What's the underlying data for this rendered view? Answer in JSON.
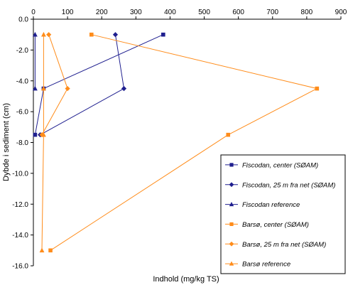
{
  "chart_data": {
    "type": "line",
    "title": "",
    "xlabel": "Indhold (mg/kg TS)",
    "ylabel": "Dybde i sediment (cm)",
    "xlim": [
      0,
      900
    ],
    "ylim": [
      -16,
      0
    ],
    "x_ticks": [
      "0",
      "100",
      "200",
      "300",
      "400",
      "500",
      "600",
      "700",
      "800",
      "900"
    ],
    "y_ticks": [
      "0.0",
      "-2.0",
      "-4.0",
      "-6.0",
      "-8.0",
      "-10.0",
      "-12.0",
      "-14.0",
      "-16.0"
    ],
    "x_axis_position": "top",
    "grid": false,
    "legend_position": "bottom-right",
    "series": [
      {
        "name": "Fiscodan, center (SØAM)",
        "color": "#1f1f8f",
        "marker": "square",
        "points": [
          [
            380,
            -1.0
          ],
          [
            30,
            -4.5
          ],
          [
            5,
            -7.5
          ]
        ]
      },
      {
        "name": "Fiscodan, 25 m fra net (SØAM)",
        "color": "#1f1f8f",
        "marker": "diamond",
        "points": [
          [
            240,
            -1.0
          ],
          [
            265,
            -4.5
          ],
          [
            20,
            -7.5
          ]
        ]
      },
      {
        "name": "Fiscodan reference",
        "color": "#1f1f8f",
        "marker": "triangle",
        "points": [
          [
            5,
            -1.0
          ],
          [
            5,
            -4.5
          ]
        ]
      },
      {
        "name": "Barsø, center (SØAM)",
        "color": "#ff8c1a",
        "marker": "square",
        "points": [
          [
            170,
            -1.0
          ],
          [
            830,
            -4.5
          ],
          [
            570,
            -7.5
          ],
          [
            50,
            -15.0
          ]
        ]
      },
      {
        "name": "Barsø, 25 m fra net (SØAM)",
        "color": "#ff8c1a",
        "marker": "diamond",
        "points": [
          [
            45,
            -1.0
          ],
          [
            100,
            -4.5
          ],
          [
            25,
            -7.5
          ]
        ]
      },
      {
        "name": "Barsø reference",
        "color": "#ff8c1a",
        "marker": "triangle",
        "points": [
          [
            30,
            -1.0
          ],
          [
            30,
            -4.5
          ],
          [
            30,
            -7.5
          ],
          [
            25,
            -15.0
          ]
        ]
      }
    ]
  }
}
